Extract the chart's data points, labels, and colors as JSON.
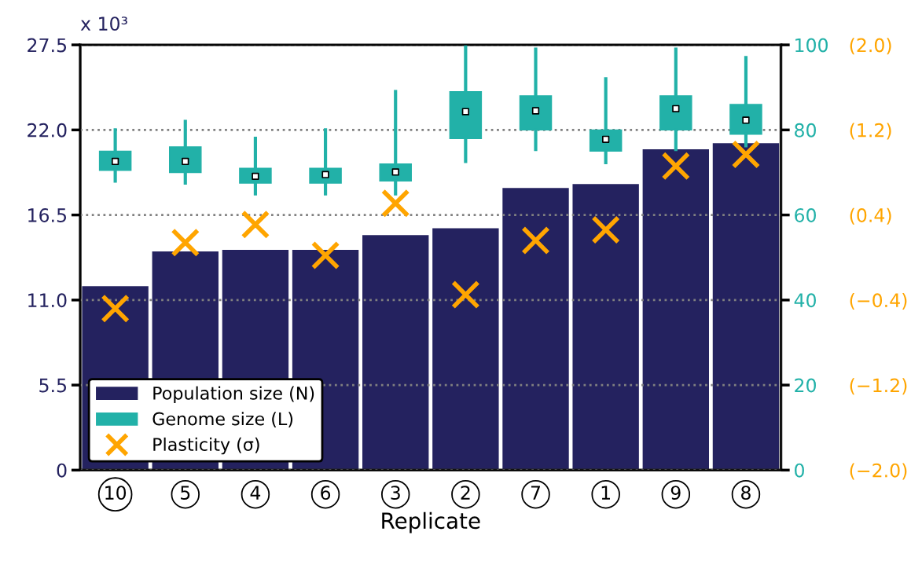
{
  "chart_data": {
    "type": "bar",
    "xlabel": "Replicate",
    "categories": [
      "10",
      "5",
      "4",
      "6",
      "3",
      "2",
      "7",
      "1",
      "9",
      "8"
    ],
    "ylim": [
      0,
      27.5
    ],
    "yticks": [
      0,
      5.5,
      {
        "value": 11.0,
        "label": "11.0"
      },
      16.5,
      {
        "value": 22.0,
        "label": "22.0"
      },
      27.5
    ],
    "y2lim": [
      0,
      100
    ],
    "y2ticks": [
      0,
      20,
      40,
      60,
      80,
      100
    ],
    "y3lim": [
      -2.0,
      2.0
    ],
    "y3ticks": [
      {
        "value": -2.0,
        "label": "(−2.0)"
      },
      {
        "value": -1.2,
        "label": "(−1.2)"
      },
      {
        "value": -0.4,
        "label": "(−0.4)"
      },
      {
        "value": 0.4,
        "label": "(0.4)"
      },
      {
        "value": 1.2,
        "label": "(1.2)"
      },
      {
        "value": 2.0,
        "label": "(2.0)"
      }
    ],
    "grid": "y",
    "legend": "bottom left",
    "annotations": [
      "x 10³"
    ],
    "series": [
      {
        "name": "Population size (N)",
        "color": "#24225f",
        "values": [
          11.95,
          14.2,
          14.3,
          14.3,
          15.25,
          15.7,
          18.3,
          18.55,
          20.8,
          21.2
        ]
      },
      {
        "name": "Genome size (L)",
        "type": "box",
        "axis": "y2",
        "color": "#22b1a8",
        "boxes": [
          {
            "low": 68,
            "q1": 70.5,
            "median": 72.6,
            "q3": 75,
            "high": 80
          },
          {
            "low": 67.5,
            "q1": 70,
            "median": 72.6,
            "q3": 76,
            "high": 82
          },
          {
            "low": 65,
            "q1": 67.5,
            "median": 69.1,
            "q3": 71,
            "high": 78
          },
          {
            "low": 65,
            "q1": 67.5,
            "median": 69.5,
            "q3": 71,
            "high": 80
          },
          {
            "low": 65,
            "q1": 68,
            "median": 70.1,
            "q3": 72,
            "high": 89
          },
          {
            "low": 72.6,
            "q1": 78,
            "median": 84.3,
            "q3": 89,
            "high": 100
          },
          {
            "low": 75.4,
            "q1": 80,
            "median": 84.5,
            "q3": 88,
            "high": 99
          },
          {
            "low": 72.3,
            "q1": 75,
            "median": 77.8,
            "q3": 80,
            "high": 92
          },
          {
            "low": 75.4,
            "q1": 80,
            "median": 85,
            "q3": 88,
            "high": 99
          },
          {
            "low": 76.3,
            "q1": 79,
            "median": 82.3,
            "q3": 86,
            "high": 97
          }
        ]
      },
      {
        "name": "Plasticity (σ)",
        "type": "scatter",
        "axis": "y3",
        "marker": "cross",
        "color": "#ffa500",
        "values": [
          -0.48,
          0.14,
          0.31,
          0.02,
          0.51,
          -0.35,
          0.16,
          0.26,
          0.86,
          0.97
        ]
      }
    ]
  }
}
